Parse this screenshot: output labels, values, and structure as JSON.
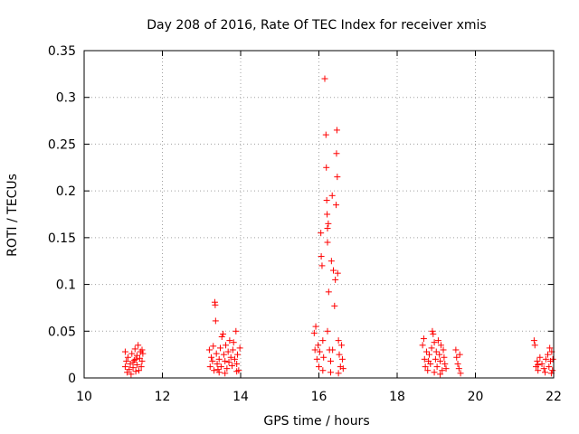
{
  "chart_data": {
    "type": "scatter",
    "title": "Day 208 of 2016, Rate Of TEC Index for receiver xmis",
    "xlabel": "GPS time / hours",
    "ylabel": "ROTI / TECUs",
    "xlim": [
      10,
      22
    ],
    "ylim": [
      0,
      0.35
    ],
    "xticks": [
      10,
      12,
      14,
      16,
      18,
      20,
      22
    ],
    "yticks": [
      0,
      0.05,
      0.1,
      0.15,
      0.2,
      0.25,
      0.3,
      0.35
    ],
    "ytick_labels": [
      "0",
      "0.05",
      "0.1",
      "0.15",
      "0.2",
      "0.25",
      "0.3",
      "0.35"
    ],
    "grid": true,
    "marker": "+",
    "color": "#ff0000",
    "series": [
      {
        "name": "ROTI",
        "points": [
          [
            11.05,
            0.028
          ],
          [
            11.05,
            0.012
          ],
          [
            11.08,
            0.018
          ],
          [
            11.1,
            0.006
          ],
          [
            11.12,
            0.022
          ],
          [
            11.15,
            0.009
          ],
          [
            11.18,
            0.015
          ],
          [
            11.2,
            0.004
          ],
          [
            11.22,
            0.026
          ],
          [
            11.25,
            0.011
          ],
          [
            11.28,
            0.019
          ],
          [
            11.3,
            0.031
          ],
          [
            11.32,
            0.007
          ],
          [
            11.35,
            0.024
          ],
          [
            11.35,
            0.014
          ],
          [
            11.38,
            0.035
          ],
          [
            11.4,
            0.008
          ],
          [
            11.42,
            0.021
          ],
          [
            11.44,
            0.028
          ],
          [
            11.46,
            0.012
          ],
          [
            11.48,
            0.018
          ],
          [
            11.48,
            0.03
          ],
          [
            11.5,
            0.026
          ],
          [
            11.25,
            0.017
          ],
          [
            11.32,
            0.02
          ],
          [
            13.2,
            0.03
          ],
          [
            13.22,
            0.012
          ],
          [
            13.25,
            0.022
          ],
          [
            13.28,
            0.018
          ],
          [
            13.3,
            0.034
          ],
          [
            13.32,
            0.008
          ],
          [
            13.34,
            0.081
          ],
          [
            13.35,
            0.078
          ],
          [
            13.36,
            0.061
          ],
          [
            13.38,
            0.026
          ],
          [
            13.4,
            0.015
          ],
          [
            13.42,
            0.009
          ],
          [
            13.45,
            0.02
          ],
          [
            13.48,
            0.032
          ],
          [
            13.5,
            0.012
          ],
          [
            13.52,
            0.044
          ],
          [
            13.55,
            0.047
          ],
          [
            13.57,
            0.025
          ],
          [
            13.6,
            0.018
          ],
          [
            13.62,
            0.035
          ],
          [
            13.65,
            0.01
          ],
          [
            13.68,
            0.028
          ],
          [
            13.7,
            0.017
          ],
          [
            13.72,
            0.04
          ],
          [
            13.75,
            0.022
          ],
          [
            13.78,
            0.013
          ],
          [
            13.8,
            0.03
          ],
          [
            13.82,
            0.038
          ],
          [
            13.85,
            0.02
          ],
          [
            13.88,
            0.05
          ],
          [
            13.9,
            0.015
          ],
          [
            13.92,
            0.025
          ],
          [
            13.95,
            0.008
          ],
          [
            13.98,
            0.032
          ],
          [
            13.45,
            0.006
          ],
          [
            13.6,
            0.005
          ],
          [
            13.9,
            0.007
          ],
          [
            15.88,
            0.048
          ],
          [
            15.9,
            0.03
          ],
          [
            15.92,
            0.055
          ],
          [
            15.95,
            0.02
          ],
          [
            15.98,
            0.035
          ],
          [
            16.0,
            0.012
          ],
          [
            16.02,
            0.028
          ],
          [
            16.05,
            0.155
          ],
          [
            16.06,
            0.13
          ],
          [
            16.08,
            0.12
          ],
          [
            16.1,
            0.04
          ],
          [
            16.12,
            0.022
          ],
          [
            16.15,
            0.32
          ],
          [
            16.18,
            0.26
          ],
          [
            16.19,
            0.225
          ],
          [
            16.2,
            0.19
          ],
          [
            16.21,
            0.175
          ],
          [
            16.22,
            0.16
          ],
          [
            16.22,
            0.145
          ],
          [
            16.24,
            0.165
          ],
          [
            16.25,
            0.092
          ],
          [
            16.27,
            0.03
          ],
          [
            16.3,
            0.018
          ],
          [
            16.32,
            0.125
          ],
          [
            16.34,
            0.195
          ],
          [
            16.37,
            0.115
          ],
          [
            16.4,
            0.077
          ],
          [
            16.42,
            0.105
          ],
          [
            16.44,
            0.185
          ],
          [
            16.45,
            0.24
          ],
          [
            16.46,
            0.265
          ],
          [
            16.47,
            0.215
          ],
          [
            16.48,
            0.112
          ],
          [
            16.5,
            0.04
          ],
          [
            16.52,
            0.025
          ],
          [
            16.55,
            0.012
          ],
          [
            16.58,
            0.035
          ],
          [
            16.6,
            0.02
          ],
          [
            16.62,
            0.01
          ],
          [
            16.1,
            0.008
          ],
          [
            16.3,
            0.006
          ],
          [
            16.5,
            0.005
          ],
          [
            16.22,
            0.05
          ],
          [
            16.35,
            0.03
          ],
          [
            18.65,
            0.035
          ],
          [
            18.68,
            0.042
          ],
          [
            18.7,
            0.02
          ],
          [
            18.72,
            0.012
          ],
          [
            18.75,
            0.028
          ],
          [
            18.78,
            0.008
          ],
          [
            18.8,
            0.018
          ],
          [
            18.82,
            0.025
          ],
          [
            18.85,
            0.015
          ],
          [
            18.88,
            0.032
          ],
          [
            18.9,
            0.05
          ],
          [
            18.92,
            0.047
          ],
          [
            18.95,
            0.038
          ],
          [
            18.98,
            0.02
          ],
          [
            19.0,
            0.028
          ],
          [
            19.02,
            0.012
          ],
          [
            19.05,
            0.04
          ],
          [
            19.08,
            0.025
          ],
          [
            19.1,
            0.018
          ],
          [
            19.12,
            0.035
          ],
          [
            19.15,
            0.008
          ],
          [
            19.18,
            0.03
          ],
          [
            19.2,
            0.022
          ],
          [
            19.22,
            0.015
          ],
          [
            19.25,
            0.01
          ],
          [
            19.5,
            0.03
          ],
          [
            19.52,
            0.022
          ],
          [
            19.55,
            0.015
          ],
          [
            19.58,
            0.01
          ],
          [
            19.6,
            0.025
          ],
          [
            19.62,
            0.005
          ],
          [
            18.95,
            0.006
          ],
          [
            19.1,
            0.004
          ],
          [
            21.5,
            0.04
          ],
          [
            21.52,
            0.035
          ],
          [
            21.55,
            0.012
          ],
          [
            21.58,
            0.018
          ],
          [
            21.6,
            0.008
          ],
          [
            21.65,
            0.022
          ],
          [
            21.7,
            0.015
          ],
          [
            21.75,
            0.01
          ],
          [
            21.8,
            0.02
          ],
          [
            21.85,
            0.025
          ],
          [
            21.88,
            0.012
          ],
          [
            21.9,
            0.032
          ],
          [
            21.92,
            0.018
          ],
          [
            21.95,
            0.028
          ],
          [
            21.97,
            0.008
          ],
          [
            21.98,
            0.02
          ],
          [
            21.6,
            0.014
          ],
          [
            21.78,
            0.006
          ],
          [
            21.94,
            0.005
          ]
        ]
      }
    ]
  }
}
